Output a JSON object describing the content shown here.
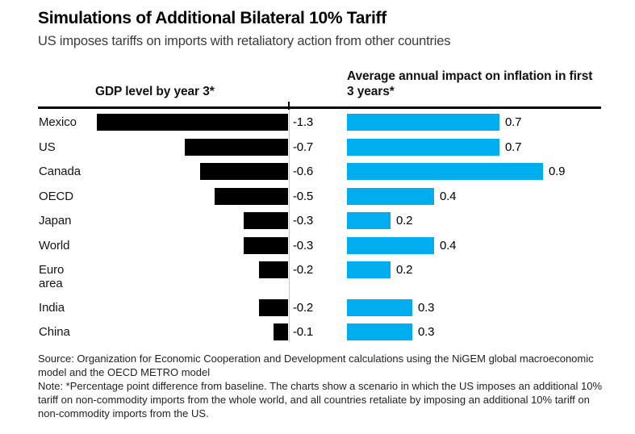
{
  "title": "Simulations of Additional Bilateral 10% Tariff",
  "subtitle": "US imposes tariffs on imports with retaliatory action from other countries",
  "panels": {
    "left_header": "GDP level by year 3*",
    "right_header": "Average annual impact on inflation in first 3 years*"
  },
  "colors": {
    "gdp_bar": "#000000",
    "inflation_bar": "#00aeef",
    "header_rule": "#000000",
    "zero_line": "#c9c9c9",
    "background": "#ffffff"
  },
  "chart_data": {
    "type": "bar",
    "orientation": "horizontal",
    "categories": [
      "Mexico",
      "US",
      "Canada",
      "OECD",
      "Japan",
      "World",
      "Euro area",
      "India",
      "China"
    ],
    "series": [
      {
        "name": "GDP level by year 3*",
        "values": [
          -1.3,
          -0.7,
          -0.6,
          -0.5,
          -0.3,
          -0.3,
          -0.2,
          -0.2,
          -0.1
        ],
        "labels": [
          "-1.3",
          "-0.7",
          "-0.6",
          "-0.5",
          "-0.3",
          "-0.3",
          "-0.2",
          "-0.2",
          "-0.1"
        ],
        "color": "#000000",
        "xlim": [
          -1.3,
          0
        ],
        "direction": "left"
      },
      {
        "name": "Average annual impact on inflation in first 3 years*",
        "values": [
          0.7,
          0.7,
          0.9,
          0.4,
          0.2,
          0.4,
          0.2,
          0.3,
          0.3
        ],
        "labels": [
          "0.7",
          "0.7",
          "0.9",
          "0.4",
          "0.2",
          "0.4",
          "0.2",
          "0.3",
          "0.3"
        ],
        "color": "#00aeef",
        "xlim": [
          0,
          0.9
        ],
        "direction": "right"
      }
    ],
    "grid": false,
    "legend_position": "column headers above each panel",
    "value_labels": "at bar ends"
  },
  "footer": {
    "source": "Source: Organization for Economic Cooperation and Development calculations using the NiGEM global macroeconomic model and the OECD METRO model",
    "note": "Note: *Percentage point difference from baseline. The charts show a scenario in which the US imposes an additional 10% tariff on non-commodity imports from the whole world, and all countries retaliate by imposing an additional 10% tariff on non-commodity imports from the US."
  }
}
